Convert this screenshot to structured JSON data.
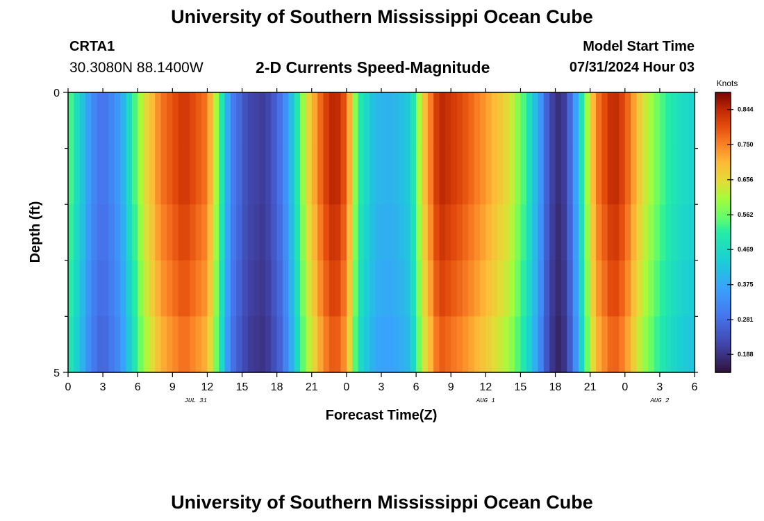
{
  "header": {
    "title": "University of Southern Mississippi Ocean Cube",
    "station_id": "CRTA1",
    "coords": "30.3080N  88.1400W",
    "subtitle": "2-D Currents Speed-Magnitude",
    "model_start_label": "Model Start Time",
    "model_start_value": "07/31/2024 Hour 03"
  },
  "footer": {
    "title": "University of Southern Mississippi Ocean Cube"
  },
  "chart_data": {
    "type": "heatmap",
    "title": "2-D Currents Speed-Magnitude",
    "xlabel": "Forecast Time(Z)",
    "ylabel": "Depth (ft)",
    "x_range_hours": [
      0,
      54
    ],
    "x_start": "07/31/2024 Hour 00",
    "y_range_ft": [
      0,
      5
    ],
    "x_ticks": [
      "0",
      "3",
      "6",
      "9",
      "12",
      "15",
      "18",
      "21",
      "0",
      "3",
      "6",
      "9",
      "12",
      "15",
      "18",
      "21",
      "0",
      "3",
      "6"
    ],
    "y_ticks": [
      "0",
      "5"
    ],
    "date_labels": [
      {
        "text": "JUL 31",
        "hour": 11
      },
      {
        "text": "AUG 1",
        "hour": 36
      },
      {
        "text": "AUG 2",
        "hour": 51
      }
    ],
    "colorbar": {
      "unit": "Knots",
      "min": 0.14,
      "max": 0.89,
      "labels": [
        "0.844",
        "0.750",
        "0.656",
        "0.562",
        "0.469",
        "0.375",
        "0.281",
        "0.188"
      ]
    },
    "depth_layers": 5,
    "depth_factor": [
      1.0,
      1.0,
      0.98,
      0.96,
      0.93
    ],
    "speed_keyframes": [
      {
        "hour": 0.0,
        "speed": 0.56
      },
      {
        "hour": 1.0,
        "speed": 0.45
      },
      {
        "hour": 2.0,
        "speed": 0.33
      },
      {
        "hour": 3.0,
        "speed": 0.28
      },
      {
        "hour": 4.5,
        "speed": 0.36
      },
      {
        "hour": 5.5,
        "speed": 0.5
      },
      {
        "hour": 6.5,
        "speed": 0.64
      },
      {
        "hour": 8.0,
        "speed": 0.76
      },
      {
        "hour": 10.0,
        "speed": 0.83
      },
      {
        "hour": 12.0,
        "speed": 0.76
      },
      {
        "hour": 13.0,
        "speed": 0.56
      },
      {
        "hour": 14.0,
        "speed": 0.32
      },
      {
        "hour": 15.5,
        "speed": 0.22
      },
      {
        "hour": 17.0,
        "speed": 0.2
      },
      {
        "hour": 18.5,
        "speed": 0.3
      },
      {
        "hour": 19.5,
        "speed": 0.45
      },
      {
        "hour": 20.5,
        "speed": 0.64
      },
      {
        "hour": 22.0,
        "speed": 0.8
      },
      {
        "hour": 23.0,
        "speed": 0.86
      },
      {
        "hour": 24.0,
        "speed": 0.78
      },
      {
        "hour": 25.0,
        "speed": 0.52
      },
      {
        "hour": 26.5,
        "speed": 0.4
      },
      {
        "hour": 28.0,
        "speed": 0.39
      },
      {
        "hour": 29.5,
        "speed": 0.44
      },
      {
        "hour": 30.5,
        "speed": 0.66
      },
      {
        "hour": 32.0,
        "speed": 0.85
      },
      {
        "hour": 34.0,
        "speed": 0.8
      },
      {
        "hour": 36.0,
        "speed": 0.73
      },
      {
        "hour": 38.0,
        "speed": 0.65
      },
      {
        "hour": 39.5,
        "speed": 0.52
      },
      {
        "hour": 40.5,
        "speed": 0.38
      },
      {
        "hour": 41.5,
        "speed": 0.22
      },
      {
        "hour": 42.5,
        "speed": 0.17
      },
      {
        "hour": 43.5,
        "speed": 0.3
      },
      {
        "hour": 44.5,
        "speed": 0.55
      },
      {
        "hour": 45.5,
        "speed": 0.75
      },
      {
        "hour": 47.0,
        "speed": 0.85
      },
      {
        "hour": 48.0,
        "speed": 0.8
      },
      {
        "hour": 49.5,
        "speed": 0.65
      },
      {
        "hour": 51.0,
        "speed": 0.55
      },
      {
        "hour": 52.5,
        "speed": 0.48
      },
      {
        "hour": 54.0,
        "speed": 0.45
      }
    ]
  }
}
